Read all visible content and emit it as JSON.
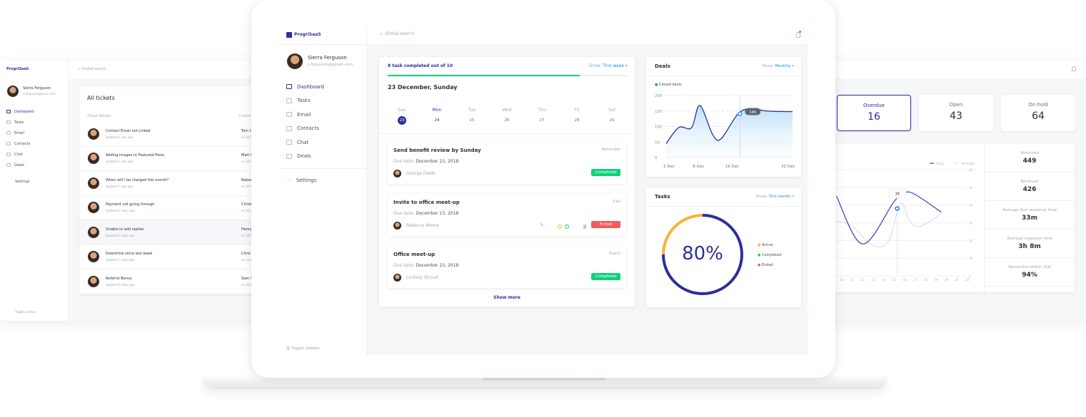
{
  "brand": "ProgriSaaS",
  "search_placeholder": "Global search",
  "user": {
    "name": "Sierra Ferguson",
    "email": "s.ferguson@gmail.com"
  },
  "nav": [
    {
      "label": "Dashboard",
      "icon": "dashboard-icon"
    },
    {
      "label": "Tasks",
      "icon": "tasks-icon"
    },
    {
      "label": "Email",
      "icon": "email-icon"
    },
    {
      "label": "Contacts",
      "icon": "contacts-icon"
    },
    {
      "label": "Chat",
      "icon": "chat-icon"
    },
    {
      "label": "Deals",
      "icon": "deals-icon"
    }
  ],
  "settings_label": "Settings",
  "toggle_sidebar": "Toggle sidebar",
  "colors": {
    "accent": "#2c2f9c",
    "green": "#10d07a",
    "red": "#f25b5b",
    "yellow": "#fbb03b",
    "link": "#1e88e5"
  },
  "left_window": {
    "title": "All tickets",
    "columns": [
      "Ticket details",
      "Customer"
    ],
    "tickets": [
      {
        "title": "Contact Email not Linked",
        "updated": "Updated 1 day ago",
        "customer": "Tom Cr",
        "date": "on 24.05"
      },
      {
        "title": "Adding Images to Featured Posts",
        "updated": "Updated 1 day ago",
        "customer": "Matt D",
        "date": "on 24.05"
      },
      {
        "title": "When will I be charged this month?",
        "updated": "Updated 1 day ago",
        "customer": "Robert",
        "date": "on 24.05"
      },
      {
        "title": "Payment not going through",
        "updated": "Updated 2 days ago",
        "customer": "Christia",
        "date": "on 24.05"
      },
      {
        "title": "Unable to add replies",
        "updated": "Updated 2 days ago",
        "customer": "Henry C",
        "date": "on 24.05"
      },
      {
        "title": "Downtime since last week",
        "updated": "Updated 3 days ago",
        "customer": "Chris E",
        "date": "on 23.05"
      },
      {
        "title": "Referral Bonus",
        "updated": "Updated 4 days ago",
        "customer": "Sam Sm",
        "date": "on 22.05"
      }
    ]
  },
  "tasks_panel": {
    "progress_text": "8 task completed out of 10",
    "progress": 0.8,
    "show_label": "Show:",
    "show_value": "This week",
    "date_heading": "23 December, Sunday",
    "days": [
      {
        "d": "Sun",
        "n": "23"
      },
      {
        "d": "Mon",
        "n": "24"
      },
      {
        "d": "Tue",
        "n": "25"
      },
      {
        "d": "Wed",
        "n": "26"
      },
      {
        "d": "Thu",
        "n": "27"
      },
      {
        "d": "Fri",
        "n": "28"
      },
      {
        "d": "Sat",
        "n": "29"
      }
    ],
    "due_label": "Due date:",
    "items": [
      {
        "title": "Send benefit review by Sunday",
        "type": "Reminder",
        "due": "December 23, 2018",
        "person": "George Fields",
        "status": "Completed"
      },
      {
        "title": "Invite to office meet-up",
        "type": "Call",
        "due": "December 23, 2018",
        "person": "Rebecca Moore",
        "status": "Ended"
      },
      {
        "title": "Office meet-up",
        "type": "Event",
        "due": "December 23, 2018",
        "person": "Lindsey Stroud",
        "status": "Completed"
      }
    ],
    "show_more": "Show more"
  },
  "deals": {
    "title": "Deals",
    "show_label": "Show:",
    "show_value": "Monthly",
    "legend": "Closed deals",
    "y_ticks": [
      "200",
      "150",
      "100",
      "50",
      "0"
    ],
    "x_ticks": [
      "1 Dec",
      "8 Dec",
      "16 Dec",
      "31 Dec"
    ],
    "tooltip": "146",
    "points": [
      [
        1,
        45
      ],
      [
        4,
        97
      ],
      [
        7,
        96
      ],
      [
        9,
        168
      ],
      [
        12,
        75
      ],
      [
        14,
        60
      ],
      [
        18,
        140
      ],
      [
        21,
        158
      ],
      [
        25,
        150
      ],
      [
        31,
        148
      ]
    ]
  },
  "tasks_donut": {
    "title": "Tasks",
    "show_label": "Show:",
    "show_value": "This month",
    "percent": "80%",
    "legend": [
      {
        "label": "Active",
        "color": "#fbb03b"
      },
      {
        "label": "Completed",
        "color": "#10d07a"
      },
      {
        "label": "Ended",
        "color": "#f25b5b"
      }
    ]
  },
  "right_window": {
    "stats": [
      {
        "label": "Overdue",
        "value": "16"
      },
      {
        "label": "Open",
        "value": "43"
      },
      {
        "label": "On hold",
        "value": "64"
      }
    ],
    "legend": [
      "Today",
      "Yesterday"
    ],
    "y_ticks": [
      "60",
      "50",
      "40",
      "30",
      "20",
      "10",
      "0"
    ],
    "x_ticks": [
      "10",
      "11",
      "12",
      "13",
      "14",
      "15",
      "16",
      "17",
      "18",
      "19",
      "20",
      "21",
      "22"
    ],
    "tooltip": "38",
    "today": [
      [
        9.5,
        45
      ],
      [
        12,
        18
      ],
      [
        15,
        42
      ],
      [
        16,
        47
      ],
      [
        17,
        46
      ],
      [
        19.5,
        36
      ]
    ],
    "yesterday": [
      [
        9.5,
        31
      ],
      [
        11,
        28
      ],
      [
        13,
        17
      ],
      [
        14.5,
        20
      ],
      [
        15.6,
        41
      ],
      [
        16.5,
        31
      ],
      [
        17.5,
        28
      ],
      [
        19.5,
        35
      ]
    ],
    "side_stats": [
      {
        "label": "Resolved",
        "value": "449"
      },
      {
        "label": "Received",
        "value": "426"
      },
      {
        "label": "Average first response time",
        "value": "33m"
      },
      {
        "label": "Average response time",
        "value": "3h 8m"
      },
      {
        "label": "Resolution within SLA",
        "value": "94%"
      }
    ]
  }
}
